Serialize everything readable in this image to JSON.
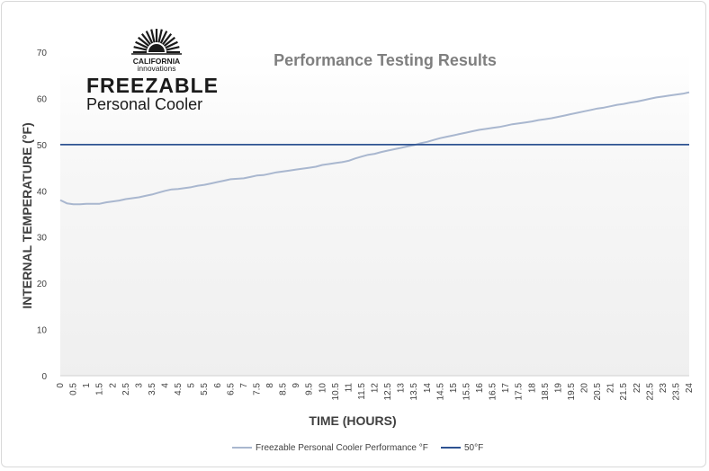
{
  "logo": {
    "line1": "CALIFORNIA",
    "line2": "innovations",
    "product": "FREEZABLE",
    "subtitle": "Personal Cooler",
    "icon": "sunburst-logo-icon"
  },
  "chart_data": {
    "type": "line",
    "title": "Performance Testing Results",
    "xlabel": "TIME (HOURS)",
    "ylabel": "INTERNAL TEMPERATURE (°F)",
    "ylim": [
      0,
      70
    ],
    "yticks": [
      "0",
      "10",
      "20",
      "30",
      "40",
      "50",
      "60",
      "70"
    ],
    "categories": [
      "0",
      "0.5",
      "1",
      "1.5",
      "2",
      "2.5",
      "3",
      "3.5",
      "4",
      "4.5",
      "5",
      "5.5",
      "6",
      "6.5",
      "7",
      "7.5",
      "8",
      "8.5",
      "9",
      "9.5",
      "10",
      "10.5",
      "11",
      "11.5",
      "12",
      "12.5",
      "13",
      "13.5",
      "14",
      "14.5",
      "15",
      "15.5",
      "16",
      "16.5",
      "17",
      "17.5",
      "18",
      "18.5",
      "19",
      "19.5",
      "20",
      "20.5",
      "21",
      "21.5",
      "22",
      "22.5",
      "23",
      "23.5",
      "24"
    ],
    "grid": false,
    "legend_position": "bottom",
    "series": [
      {
        "name": "Freezable Personal Cooler Performance °F",
        "color": "#a9b7cf",
        "x": [
          0,
          0.25,
          0.5,
          0.75,
          1,
          1.25,
          1.5,
          1.75,
          2,
          2.25,
          2.5,
          2.75,
          3,
          3.25,
          3.5,
          3.75,
          4,
          4.25,
          4.5,
          4.75,
          5,
          5.25,
          5.5,
          5.75,
          6,
          6.25,
          6.5,
          6.75,
          7,
          7.25,
          7.5,
          7.75,
          8,
          8.25,
          8.5,
          8.75,
          9,
          9.25,
          9.5,
          9.75,
          10,
          10.25,
          10.5,
          10.75,
          11,
          11.25,
          11.5,
          11.75,
          12,
          12.25,
          12.5,
          12.75,
          13,
          13.25,
          13.5,
          13.75,
          14,
          14.25,
          14.5,
          14.75,
          15,
          15.25,
          15.5,
          15.75,
          16,
          16.25,
          16.5,
          16.75,
          17,
          17.25,
          17.5,
          17.75,
          18,
          18.25,
          18.5,
          18.75,
          19,
          19.25,
          19.5,
          19.75,
          20,
          20.25,
          20.5,
          20.75,
          21,
          21.25,
          21.5,
          21.75,
          22,
          22.25,
          22.5,
          22.75,
          23,
          23.25,
          23.5,
          23.75,
          24
        ],
        "values": [
          38.0,
          37.3,
          37.1,
          37.1,
          37.2,
          37.2,
          37.2,
          37.5,
          37.7,
          37.9,
          38.2,
          38.4,
          38.6,
          38.9,
          39.2,
          39.6,
          40.0,
          40.3,
          40.4,
          40.6,
          40.8,
          41.1,
          41.3,
          41.6,
          41.9,
          42.2,
          42.5,
          42.6,
          42.7,
          43.0,
          43.3,
          43.4,
          43.7,
          44.0,
          44.2,
          44.4,
          44.6,
          44.8,
          45.0,
          45.2,
          45.6,
          45.8,
          46.0,
          46.2,
          46.5,
          47.0,
          47.4,
          47.8,
          48.0,
          48.4,
          48.7,
          49.0,
          49.3,
          49.6,
          49.9,
          50.3,
          50.6,
          51.0,
          51.4,
          51.7,
          52.0,
          52.3,
          52.6,
          52.9,
          53.2,
          53.4,
          53.6,
          53.8,
          54.1,
          54.4,
          54.6,
          54.8,
          55.0,
          55.3,
          55.5,
          55.7,
          56.0,
          56.3,
          56.6,
          56.9,
          57.2,
          57.5,
          57.8,
          58.0,
          58.3,
          58.6,
          58.8,
          59.1,
          59.3,
          59.6,
          59.9,
          60.2,
          60.4,
          60.6,
          60.8,
          61.0,
          61.3
        ]
      },
      {
        "name": "50°F",
        "color": "#2e5392",
        "x": [
          0,
          24
        ],
        "values": [
          50,
          50
        ]
      }
    ]
  }
}
